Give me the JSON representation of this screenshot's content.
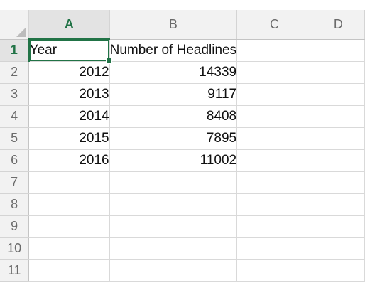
{
  "columns": [
    "A",
    "B",
    "C",
    "D"
  ],
  "active_column": "A",
  "rows": [
    {
      "num": "1",
      "a": "Year",
      "b": "Number of Headlines",
      "c": ""
    },
    {
      "num": "2",
      "a": "2012",
      "b": "14339",
      "c": ""
    },
    {
      "num": "3",
      "a": "2013",
      "b": "9117",
      "c": ""
    },
    {
      "num": "4",
      "a": "2014",
      "b": "8408",
      "c": ""
    },
    {
      "num": "5",
      "a": "2015",
      "b": "7895",
      "c": ""
    },
    {
      "num": "6",
      "a": "2016",
      "b": "11002",
      "c": ""
    },
    {
      "num": "7",
      "a": "",
      "b": "",
      "c": ""
    },
    {
      "num": "8",
      "a": "",
      "b": "",
      "c": ""
    },
    {
      "num": "9",
      "a": "",
      "b": "",
      "c": ""
    },
    {
      "num": "10",
      "a": "",
      "b": "",
      "c": ""
    },
    {
      "num": "11",
      "a": "",
      "b": "",
      "c": ""
    }
  ],
  "selected_cell": "A1",
  "colors": {
    "accent": "#217346",
    "header_bg": "#f2f2f2",
    "gridline": "#d9d9d9"
  }
}
